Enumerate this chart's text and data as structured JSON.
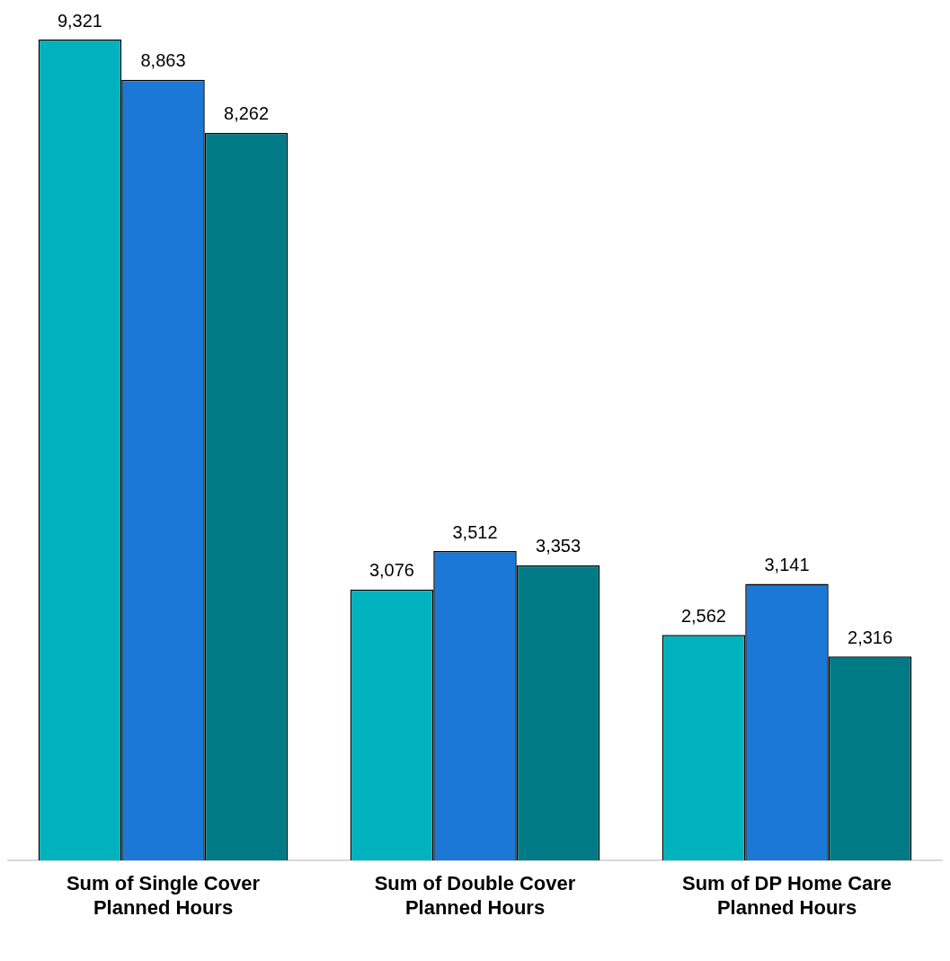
{
  "chart_data": {
    "type": "bar",
    "categories": [
      "Sum of Single Cover Planned Hours",
      "Sum of Double Cover Planned Hours",
      "Sum of DP Home Care Planned Hours"
    ],
    "series": [
      {
        "color": "#00b2bd",
        "values": [
          9321,
          3076,
          2562
        ],
        "value_labels": [
          "9,321",
          "3,076",
          "2,562"
        ]
      },
      {
        "color": "#1c78d6",
        "values": [
          8863,
          3512,
          3141
        ],
        "value_labels": [
          "8,863",
          "3,512",
          "3,141"
        ]
      },
      {
        "color": "#007b86",
        "values": [
          8262,
          3353,
          2316
        ],
        "value_labels": [
          "8,262",
          "3,353",
          "2,316"
        ]
      }
    ],
    "grid": false,
    "legend": false
  }
}
